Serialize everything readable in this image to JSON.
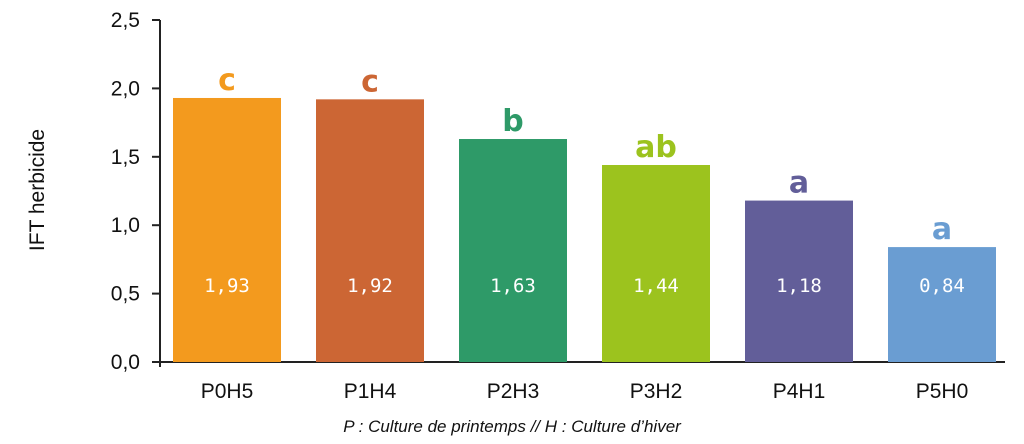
{
  "chart_data": {
    "type": "bar",
    "categories": [
      "P0H5",
      "P1H4",
      "P2H3",
      "P3H2",
      "P4H1",
      "P5H0"
    ],
    "values": [
      1.93,
      1.92,
      1.63,
      1.44,
      1.18,
      0.84
    ],
    "value_labels": [
      "1,93",
      "1,92",
      "1,63",
      "1,44",
      "1,18",
      "0,84"
    ],
    "group_letters": [
      "c",
      "c",
      "b",
      "ab",
      "a",
      "a"
    ],
    "colors": [
      "#F39A1E",
      "#CC6634",
      "#2E9A68",
      "#9CC31E",
      "#625E99",
      "#6A9DD2"
    ],
    "ylabel": "IFT herbicide",
    "xlabel": "P : Culture de printemps // H : Culture d’hiver",
    "ylim": [
      0,
      2.5
    ],
    "yticks": [
      0,
      0.5,
      1.0,
      1.5,
      2.0,
      2.5
    ],
    "ytick_labels": [
      "0,0",
      "0,5",
      "1,0",
      "1,5",
      "2,0",
      "2,5"
    ],
    "grid": false,
    "legend": "none"
  }
}
